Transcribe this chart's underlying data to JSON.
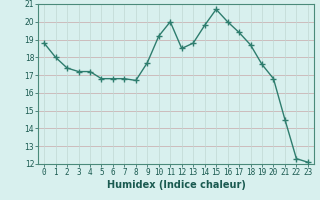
{
  "x": [
    0,
    1,
    2,
    3,
    4,
    5,
    6,
    7,
    8,
    9,
    10,
    11,
    12,
    13,
    14,
    15,
    16,
    17,
    18,
    19,
    20,
    21,
    22,
    23
  ],
  "y": [
    18.8,
    18.0,
    17.4,
    17.2,
    17.2,
    16.8,
    16.8,
    16.8,
    16.7,
    17.7,
    19.2,
    20.0,
    18.5,
    18.8,
    19.8,
    20.7,
    20.0,
    19.4,
    18.7,
    17.6,
    16.8,
    14.5,
    12.3,
    12.1
  ],
  "line_color": "#2e7d6e",
  "marker": "+",
  "marker_size": 4,
  "bg_color": "#d8f0ee",
  "hgrid_color": "#c8a8a8",
  "vgrid_color": "#c0d8d4",
  "xlabel": "Humidex (Indice chaleur)",
  "xlabel_fontsize": 7,
  "xlabel_bold": true,
  "ylim": [
    12,
    21
  ],
  "xlim": [
    -0.5,
    23.5
  ],
  "yticks": [
    12,
    13,
    14,
    15,
    16,
    17,
    18,
    19,
    20,
    21
  ],
  "xticks": [
    0,
    1,
    2,
    3,
    4,
    5,
    6,
    7,
    8,
    9,
    10,
    11,
    12,
    13,
    14,
    15,
    16,
    17,
    18,
    19,
    20,
    21,
    22,
    23
  ],
  "tick_fontsize": 5.5,
  "line_width": 1.0
}
